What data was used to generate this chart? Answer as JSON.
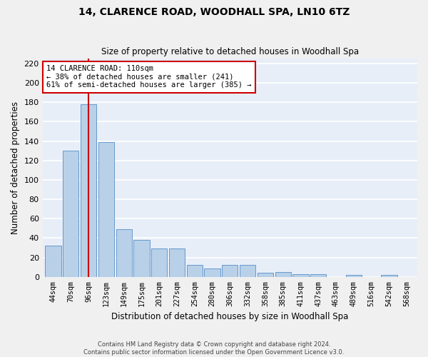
{
  "title": "14, CLARENCE ROAD, WOODHALL SPA, LN10 6TZ",
  "subtitle": "Size of property relative to detached houses in Woodhall Spa",
  "xlabel": "Distribution of detached houses by size in Woodhall Spa",
  "ylabel": "Number of detached properties",
  "footer_line1": "Contains HM Land Registry data © Crown copyright and database right 2024.",
  "footer_line2": "Contains public sector information licensed under the Open Government Licence v3.0.",
  "bar_labels": [
    "44sqm",
    "70sqm",
    "96sqm",
    "123sqm",
    "149sqm",
    "175sqm",
    "201sqm",
    "227sqm",
    "254sqm",
    "280sqm",
    "306sqm",
    "332sqm",
    "358sqm",
    "385sqm",
    "411sqm",
    "437sqm",
    "463sqm",
    "489sqm",
    "516sqm",
    "542sqm",
    "568sqm"
  ],
  "bar_values": [
    32,
    130,
    178,
    139,
    49,
    38,
    29,
    29,
    12,
    9,
    12,
    12,
    4,
    5,
    3,
    3,
    0,
    2,
    0,
    2,
    0
  ],
  "bar_color": "#b8d0e8",
  "bar_edge_color": "#6699cc",
  "background_color": "#e8eef8",
  "grid_color": "#ffffff",
  "red_line_color": "#cc0000",
  "red_line_x": 2,
  "annotation_text": "14 CLARENCE ROAD: 110sqm\n← 38% of detached houses are smaller (241)\n61% of semi-detached houses are larger (385) →",
  "annotation_box_color": "#ffffff",
  "annotation_box_edge": "#cc0000",
  "ylim": [
    0,
    225
  ],
  "yticks": [
    0,
    20,
    40,
    60,
    80,
    100,
    120,
    140,
    160,
    180,
    200,
    220
  ],
  "fig_bg": "#f0f0f0"
}
